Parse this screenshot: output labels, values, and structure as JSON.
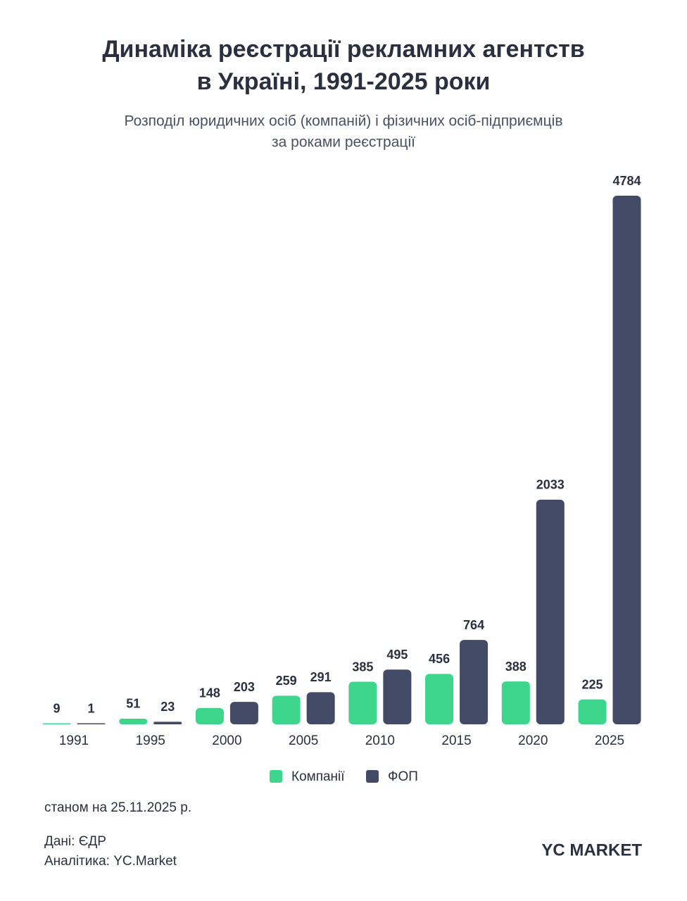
{
  "chart_data": {
    "type": "bar",
    "title": [
      "Динаміка реєстрації рекламних агентств",
      "в Україні, 1991-2025 роки"
    ],
    "subtitle": [
      "Розподіл юридичних осіб (компаній) і фізичних осіб-підприємців",
      "за роками реєстрації"
    ],
    "categories": [
      "1991",
      "1995",
      "2000",
      "2005",
      "2010",
      "2015",
      "2020",
      "2025"
    ],
    "series": [
      {
        "name": "Компанії",
        "color": "#3dd68c",
        "values": [
          9,
          51,
          148,
          259,
          385,
          456,
          388,
          225
        ]
      },
      {
        "name": "ФОП",
        "color": "#434a66",
        "values": [
          1,
          23,
          203,
          291,
          495,
          764,
          2033,
          4784
        ]
      }
    ]
  },
  "footer": {
    "date_note": "станом на 25.11.2025 р.",
    "source": "Дані: ЄДР",
    "analytics": "Аналітика: YC.Market",
    "logo": "YC MARKET"
  }
}
